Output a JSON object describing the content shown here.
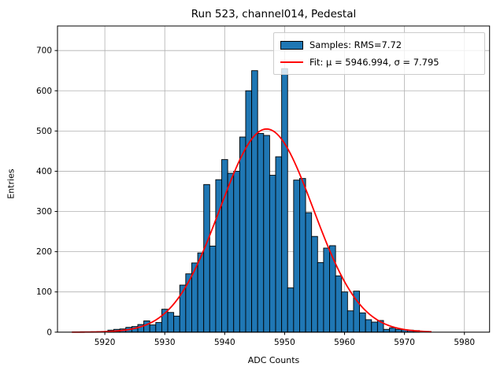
{
  "chart_data": {
    "type": "bar",
    "title": "Run 523, channel014, Pedestal",
    "xlabel": "ADC Counts",
    "ylabel": "Entries",
    "xlim": [
      5912.1,
      5984.2
    ],
    "ylim": [
      0,
      761
    ],
    "xticks": [
      5920,
      5930,
      5940,
      5950,
      5960,
      5970,
      5980
    ],
    "yticks": [
      0,
      100,
      200,
      300,
      400,
      500,
      600,
      700
    ],
    "grid": true,
    "bin_width": 1,
    "bin_centers": [
      5921,
      5922,
      5923,
      5924,
      5925,
      5926,
      5927,
      5928,
      5929,
      5930,
      5931,
      5932,
      5933,
      5934,
      5935,
      5936,
      5937,
      5938,
      5939,
      5940,
      5941,
      5942,
      5943,
      5944,
      5945,
      5946,
      5947,
      5948,
      5949,
      5950,
      5951,
      5952,
      5953,
      5954,
      5955,
      5956,
      5957,
      5958,
      5959,
      5960,
      5961,
      5962,
      5963,
      5964,
      5965,
      5966,
      5967,
      5968,
      5969,
      5970,
      5971,
      5972
    ],
    "counts": [
      5,
      7,
      8,
      12,
      14,
      19,
      28,
      18,
      24,
      57,
      49,
      40,
      117,
      145,
      172,
      197,
      367,
      214,
      379,
      429,
      395,
      400,
      485,
      600,
      650,
      494,
      489,
      390,
      436,
      655,
      110,
      378,
      382,
      297,
      238,
      173,
      209,
      215,
      140,
      100,
      53,
      102,
      48,
      31,
      25,
      29,
      7,
      11,
      7,
      6,
      5,
      4
    ],
    "fit": {
      "type": "gaussian",
      "mu": 5946.994,
      "sigma": 7.795,
      "amplitude": 505,
      "x_start": 5914.5,
      "x_end": 5974.5
    },
    "legend": {
      "position": "upper right",
      "entries": [
        {
          "label": "Samples: RMS=7.72",
          "type": "patch",
          "color": "#1f77b4"
        },
        {
          "label": "Fit: μ = 5946.994, σ = 7.795",
          "type": "line",
          "color": "#ff0000"
        }
      ]
    },
    "colors": {
      "bar_fill": "#1f77b4",
      "bar_edge": "#000000",
      "fit_line": "#ff0000",
      "grid": "#b0b0b0",
      "spine": "#000000",
      "legend_border": "#cccccc",
      "background": "#ffffff"
    }
  }
}
